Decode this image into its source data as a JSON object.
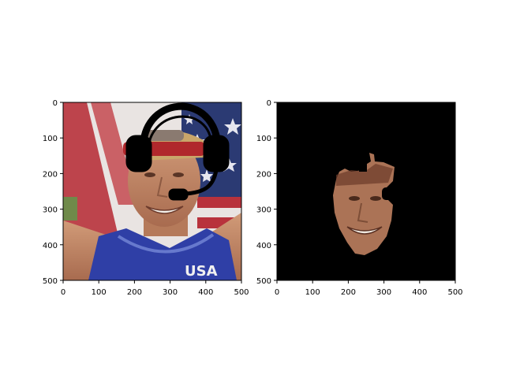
{
  "chart_data": [
    {
      "type": "image",
      "panel": "left",
      "description_of_content": "composited photo with headset overlay",
      "xlim": [
        0,
        500
      ],
      "ylim": [
        500,
        0
      ],
      "x_ticks": [
        "0",
        "100",
        "200",
        "300",
        "400",
        "500"
      ],
      "y_ticks": [
        "0",
        "100",
        "200",
        "300",
        "400",
        "500"
      ]
    },
    {
      "type": "image",
      "panel": "right",
      "description_of_content": "segmentation-masked face on black background",
      "xlim": [
        0,
        500
      ],
      "ylim": [
        500,
        0
      ],
      "x_ticks": [
        "0",
        "100",
        "200",
        "300",
        "400",
        "500"
      ],
      "y_ticks": [
        "0",
        "100",
        "200",
        "300",
        "400",
        "500"
      ]
    }
  ],
  "colors": {
    "flag_red": "#b8323c",
    "flag_white": "#f1eeee",
    "flag_blue": "#2b3a73",
    "skin": "#c98f6c",
    "skin_shadow": "#9a6047",
    "jersey_blue": "#2f3fa6",
    "headband_red": "#b0282c",
    "hair": "#c9a66a",
    "mask_bg": "#000000",
    "headset": "#000000"
  }
}
